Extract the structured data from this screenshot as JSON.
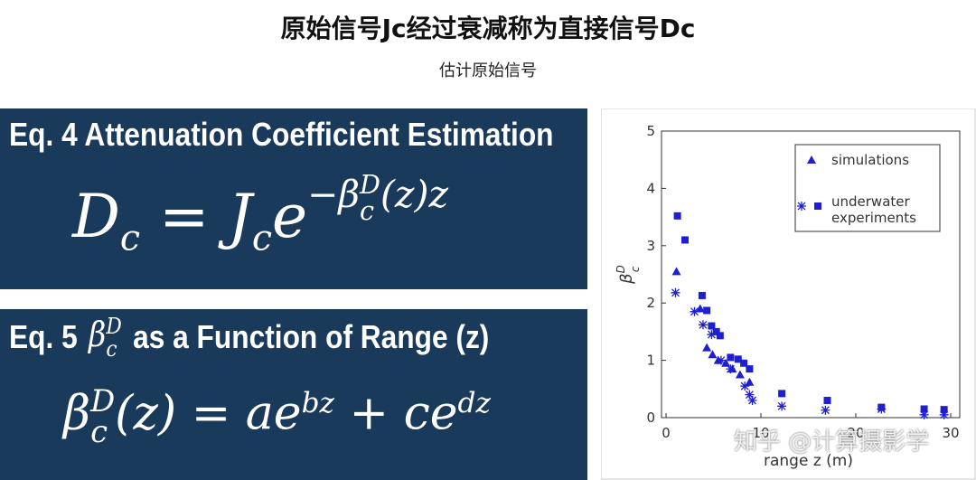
{
  "header": {
    "title": "原始信号Jc经过衰减称为直接信号Dc",
    "subtitle": "估计原始信号"
  },
  "panels": [
    {
      "heading": "Eq. 4 Attenuation Coefficient Estimation",
      "formula": {
        "lhs": "D",
        "lhs_sub": "c",
        "eq": "=",
        "j": "J",
        "j_sub": "c",
        "e": "e",
        "exp_sign": "−",
        "exp_beta": "β",
        "exp_sup": "D",
        "exp_sub": "c",
        "exp_rest": "(z)z"
      }
    },
    {
      "heading_prefix": "Eq. 5",
      "heading_symbol": "β",
      "heading_sup": "D",
      "heading_sub": "c",
      "heading": "as a Function of Range (z)",
      "formula": {
        "beta": "β",
        "sup": "D",
        "sub": "c",
        "arg": "(z)",
        "eq": "=",
        "a": "ae",
        "a_exp": "bz",
        "plus": "+",
        "c": "ce",
        "c_exp": "dz"
      }
    }
  ],
  "watermark": "知乎 @计算摄影学",
  "chart_data": {
    "type": "scatter",
    "xlabel": "range z (m)",
    "ylabel": {
      "symbol": "β",
      "sup": "D",
      "sub": "c"
    },
    "xlim": [
      0,
      30
    ],
    "ylim": [
      0,
      5
    ],
    "xticks": [
      0,
      10,
      20,
      30
    ],
    "yticks": [
      0,
      1,
      2,
      3,
      4,
      5
    ],
    "legend": "upper right",
    "series": [
      {
        "name": "simulations",
        "marker": "triangle",
        "color": "#1f1fd0",
        "x": [
          1.1,
          3.6,
          4.3,
          4.9,
          5.5,
          6.3,
          7.0,
          7.8,
          8.8
        ],
        "values": [
          2.55,
          1.9,
          1.22,
          1.1,
          1.0,
          0.95,
          0.85,
          0.75,
          0.62
        ]
      },
      {
        "name": "underwater experiments",
        "marker": "square",
        "color": "#1f1fd0",
        "x": [
          1.2,
          2.0,
          3.8,
          4.3,
          4.8,
          5.3,
          5.7,
          6.8,
          7.6,
          8.2,
          8.8,
          12.2,
          17.0,
          22.7,
          27.2,
          29.3
        ],
        "values": [
          3.52,
          3.1,
          2.13,
          1.87,
          1.6,
          1.5,
          1.43,
          1.05,
          1.02,
          0.95,
          0.85,
          0.42,
          0.3,
          0.18,
          0.15,
          0.14
        ]
      },
      {
        "marker": "star",
        "color": "#1f1fd0",
        "x": [
          1.0,
          3.0,
          3.9,
          4.8,
          5.8,
          6.8,
          8.3,
          8.8,
          9.1,
          12.2,
          16.8,
          22.7,
          27.2,
          29.3
        ],
        "values": [
          2.18,
          1.85,
          1.62,
          1.45,
          1.0,
          0.85,
          0.55,
          0.4,
          0.3,
          0.2,
          0.13,
          0.15,
          0.05,
          0.05
        ]
      }
    ]
  }
}
